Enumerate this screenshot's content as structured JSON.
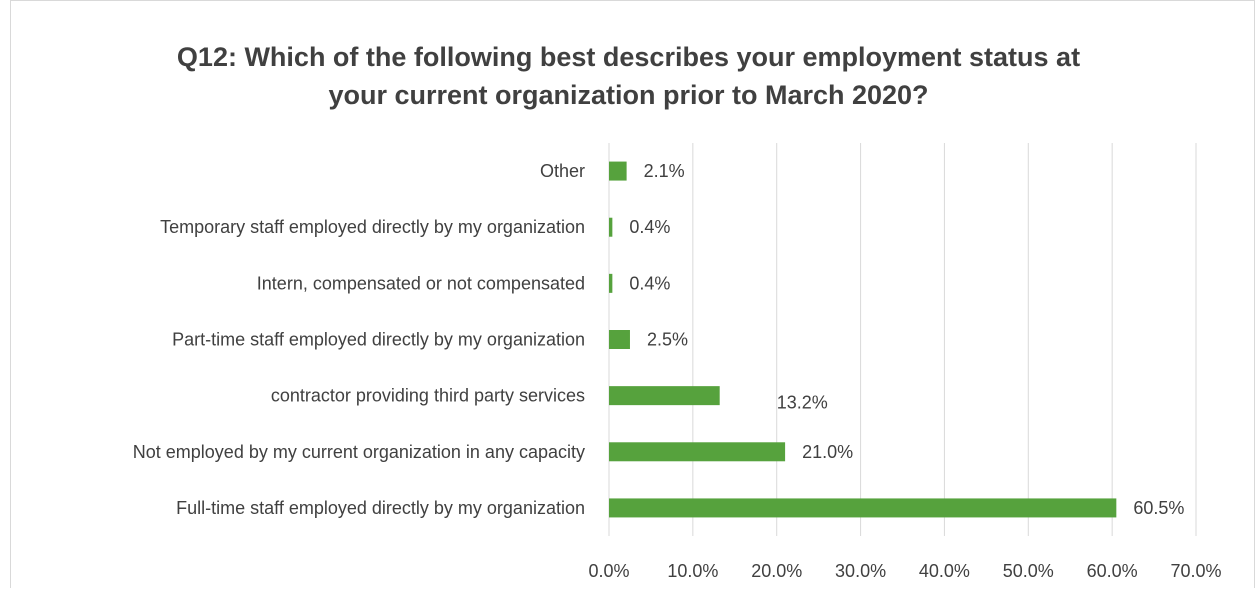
{
  "chart_data": {
    "type": "bar",
    "orientation": "horizontal",
    "title": "Q12: Which of the following best describes your employment status at\nyour current organization prior to March 2020?",
    "categories": [
      "Full-time staff employed directly by my organization",
      "Not employed by my current organization in any capacity",
      "contractor providing third party services",
      "Part-time staff employed directly by my organization",
      "Intern, compensated or not compensated",
      "Temporary staff employed directly by my organization",
      "Other"
    ],
    "values": [
      60.5,
      21.0,
      13.2,
      2.5,
      0.4,
      0.4,
      2.1
    ],
    "value_labels": [
      "60.5%",
      "21.0%",
      "13.2%",
      "2.5%",
      "0.4%",
      "0.4%",
      "2.1%"
    ],
    "xlim": [
      0,
      70
    ],
    "x_ticks": [
      "0.0%",
      "10.0%",
      "20.0%",
      "30.0%",
      "40.0%",
      "50.0%",
      "60.0%",
      "70.0%"
    ],
    "grid": true,
    "legend": "none",
    "bar_color": "#56a23d",
    "grid_color": "#d9d9d9"
  }
}
